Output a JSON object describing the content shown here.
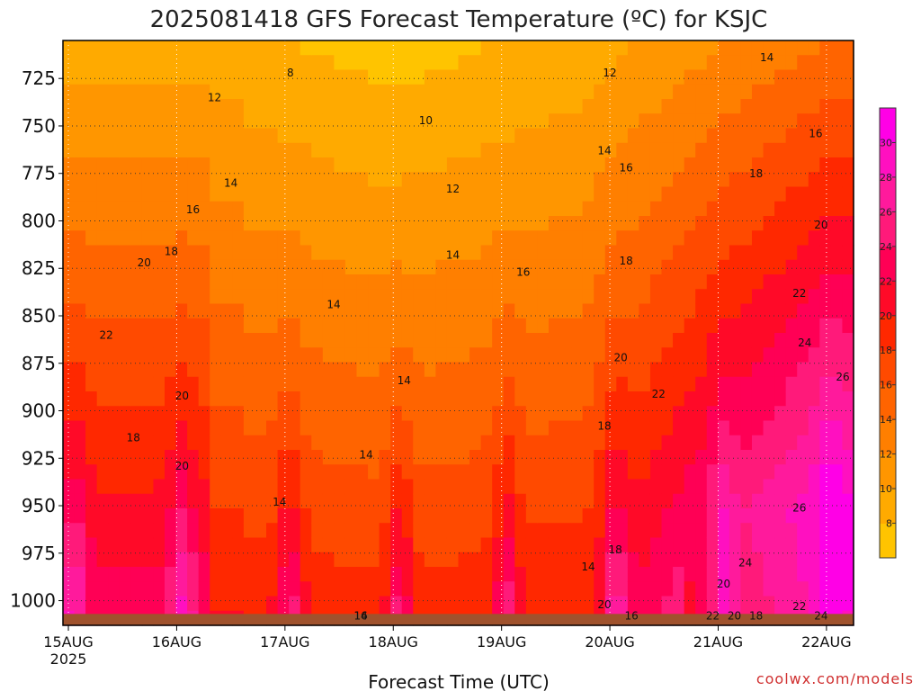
{
  "title": "2025081418 GFS Forecast Temperature (ºC) for KSJC",
  "credit": "coolwx.com/models",
  "chart_data": {
    "type": "heatmap",
    "title": "2025081418 GFS Forecast Temperature (ºC) for KSJC",
    "xlabel": "Forecast Time (UTC)",
    "ylabel": "",
    "x_ticks": [
      {
        "day": 0,
        "label": "15AUG"
      },
      {
        "day": 1,
        "label": "16AUG"
      },
      {
        "day": 2,
        "label": "17AUG"
      },
      {
        "day": 3,
        "label": "18AUG"
      },
      {
        "day": 4,
        "label": "19AUG"
      },
      {
        "day": 5,
        "label": "20AUG"
      },
      {
        "day": 6,
        "label": "21AUG"
      },
      {
        "day": 7,
        "label": "22AUG"
      }
    ],
    "x_year_label": "2025",
    "xlim_days": [
      -0.05,
      7.25
    ],
    "y_ticks": [
      725,
      750,
      775,
      800,
      825,
      850,
      875,
      900,
      925,
      950,
      975,
      1000
    ],
    "ylim_hpa": [
      705,
      1013
    ],
    "ground_pressure_hpa": 1007,
    "colorbar": {
      "levels": [
        6,
        8,
        10,
        12,
        14,
        16,
        18,
        20,
        22,
        24,
        26,
        28,
        30,
        32
      ],
      "tick_labels": [
        8,
        10,
        12,
        14,
        16,
        18,
        20,
        22,
        24,
        26,
        28,
        30
      ],
      "colors": [
        "#ffc400",
        "#ffaa00",
        "#ff9600",
        "#ff7f00",
        "#ff6400",
        "#ff4a00",
        "#ff2800",
        "#ff0a28",
        "#ff0055",
        "#ff1a7a",
        "#ff1a9c",
        "#ff10c0",
        "#ff00e6"
      ]
    },
    "grid": "dotted",
    "contour_labels": [
      {
        "day": 2.05,
        "p": 724,
        "text": "8"
      },
      {
        "day": 1.35,
        "p": 737,
        "text": "12"
      },
      {
        "day": 3.3,
        "p": 749,
        "text": "10"
      },
      {
        "day": 5.0,
        "p": 724,
        "text": "12"
      },
      {
        "day": 6.45,
        "p": 716,
        "text": "14"
      },
      {
        "day": 6.9,
        "p": 756,
        "text": "16"
      },
      {
        "day": 1.5,
        "p": 782,
        "text": "14"
      },
      {
        "day": 1.15,
        "p": 796,
        "text": "16"
      },
      {
        "day": 3.55,
        "p": 785,
        "text": "12"
      },
      {
        "day": 4.95,
        "p": 765,
        "text": "14"
      },
      {
        "day": 5.15,
        "p": 774,
        "text": "16"
      },
      {
        "day": 6.35,
        "p": 777,
        "text": "18"
      },
      {
        "day": 6.95,
        "p": 804,
        "text": "20"
      },
      {
        "day": 0.95,
        "p": 818,
        "text": "18"
      },
      {
        "day": 0.7,
        "p": 824,
        "text": "20"
      },
      {
        "day": 3.55,
        "p": 820,
        "text": "14"
      },
      {
        "day": 4.2,
        "p": 829,
        "text": "16"
      },
      {
        "day": 5.15,
        "p": 823,
        "text": "18"
      },
      {
        "day": 6.75,
        "p": 840,
        "text": "22"
      },
      {
        "day": 2.45,
        "p": 846,
        "text": "14"
      },
      {
        "day": 0.35,
        "p": 862,
        "text": "22"
      },
      {
        "day": 6.8,
        "p": 866,
        "text": "24"
      },
      {
        "day": 3.1,
        "p": 886,
        "text": "14"
      },
      {
        "day": 5.1,
        "p": 874,
        "text": "20"
      },
      {
        "day": 1.05,
        "p": 894,
        "text": "20"
      },
      {
        "day": 7.15,
        "p": 884,
        "text": "26"
      },
      {
        "day": 5.45,
        "p": 893,
        "text": "22"
      },
      {
        "day": 0.6,
        "p": 916,
        "text": "18"
      },
      {
        "day": 4.95,
        "p": 910,
        "text": "18"
      },
      {
        "day": 2.75,
        "p": 925,
        "text": "14"
      },
      {
        "day": 1.05,
        "p": 931,
        "text": "20"
      },
      {
        "day": 1.95,
        "p": 950,
        "text": "14"
      },
      {
        "day": 6.75,
        "p": 953,
        "text": "26"
      },
      {
        "day": 4.8,
        "p": 984,
        "text": "14"
      },
      {
        "day": 5.05,
        "p": 975,
        "text": "18"
      },
      {
        "day": 6.25,
        "p": 982,
        "text": "24"
      },
      {
        "day": 6.05,
        "p": 993,
        "text": "20"
      },
      {
        "day": 4.95,
        "p": 1004,
        "text": "20"
      },
      {
        "day": 6.75,
        "p": 1005,
        "text": "22"
      },
      {
        "day": 5.2,
        "p": 1014,
        "text": "16"
      },
      {
        "day": 6.15,
        "p": 1022,
        "text": "20"
      },
      {
        "day": 2.7,
        "p": 1033,
        "text": "14"
      },
      {
        "day": 6.35,
        "p": 1051,
        "text": "18"
      },
      {
        "day": 2.7,
        "p": 1061,
        "text": "16"
      },
      {
        "day": 6.95,
        "p": 1061,
        "text": "24"
      },
      {
        "day": 5.95,
        "p": 1067,
        "text": "22"
      }
    ]
  }
}
